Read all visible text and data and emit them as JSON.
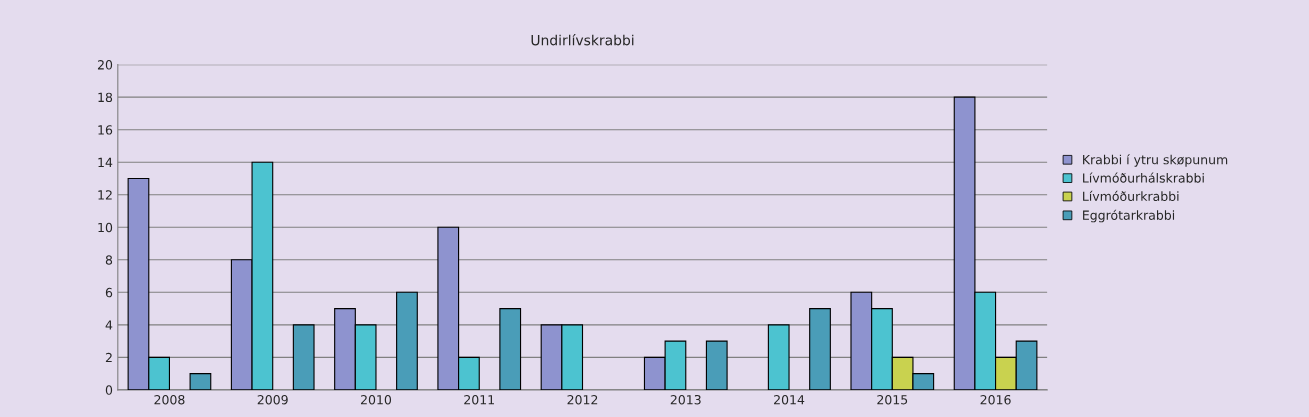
{
  "chart_data": {
    "type": "bar",
    "title": "Undirlívskrabbi",
    "categories": [
      "2008",
      "2009",
      "2010",
      "2011",
      "2012",
      "2013",
      "2014",
      "2015",
      "2016"
    ],
    "series": [
      {
        "name": "Krabbi í ytru skøpunum",
        "color": "#8e93cf",
        "values": [
          13,
          8,
          5,
          10,
          4,
          2,
          0,
          6,
          18
        ]
      },
      {
        "name": "Lívmóðurhálskrabbi",
        "color": "#4cc3d0",
        "values": [
          2,
          14,
          4,
          2,
          4,
          3,
          4,
          5,
          6
        ]
      },
      {
        "name": "Lívmóðurkrabbi",
        "color": "#c9d24f",
        "values": [
          0,
          0,
          0,
          0,
          0,
          0,
          0,
          2,
          2
        ]
      },
      {
        "name": "Eggrótarkrabbi",
        "color": "#4a9db8",
        "values": [
          1,
          4,
          6,
          5,
          0,
          3,
          5,
          1,
          3
        ]
      }
    ],
    "ylim": [
      0,
      20
    ],
    "yticks": [
      0,
      2,
      4,
      6,
      8,
      10,
      12,
      14,
      16,
      18,
      20
    ],
    "grid": "y",
    "legend": "right"
  }
}
